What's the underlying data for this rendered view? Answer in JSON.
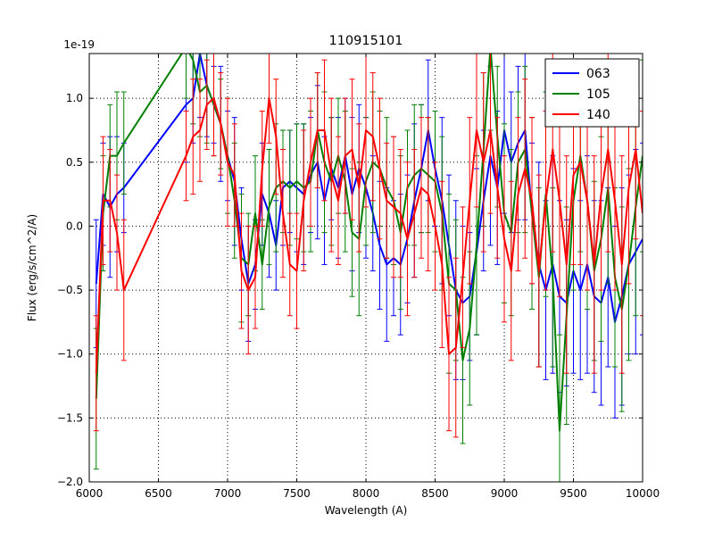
{
  "figure": {
    "title": "110915101",
    "xlabel": "Wavelength (A)",
    "ylabel": "Flux (erg/s/cm^2/A)",
    "offset_text": "1e-19"
  },
  "chart_data": {
    "type": "line",
    "title": "110915101",
    "xlabel": "Wavelength (A)",
    "ylabel": "Flux (erg/s/cm^2/A)",
    "y_scale_factor": "1e-19",
    "xlim": [
      6000,
      10000
    ],
    "ylim": [
      -2.0,
      1.35
    ],
    "xticks": [
      6000,
      6500,
      7000,
      7500,
      8000,
      8500,
      9000,
      9500,
      10000
    ],
    "yticks": [
      -2.0,
      -1.5,
      -1.0,
      -0.5,
      0.0,
      0.5,
      1.0
    ],
    "grid": true,
    "grid_style": "dotted",
    "legend": {
      "position": "upper right",
      "entries": [
        "063",
        "105",
        "140"
      ]
    },
    "series": [
      {
        "name": "063",
        "color": "#0000ff",
        "x": [
          6050,
          6100,
          6150,
          6200,
          6250,
          6700,
          6750,
          6800,
          6850,
          6900,
          6950,
          7000,
          7050,
          7100,
          7150,
          7200,
          7250,
          7300,
          7350,
          7400,
          7450,
          7500,
          7550,
          7600,
          7650,
          7700,
          7750,
          7800,
          7850,
          7900,
          7950,
          8000,
          8050,
          8100,
          8150,
          8200,
          8250,
          8300,
          8350,
          8400,
          8450,
          8500,
          8550,
          8600,
          8650,
          8700,
          8750,
          8800,
          8850,
          8900,
          8950,
          9000,
          9050,
          9100,
          9150,
          9200,
          9250,
          9300,
          9350,
          9400,
          9450,
          9500,
          9550,
          9600,
          9650,
          9700,
          9750,
          9800,
          9850,
          9900,
          9950,
          10000
        ],
        "y": [
          -0.45,
          0.25,
          0.15,
          0.25,
          0.3,
          0.95,
          1.0,
          1.35,
          1.1,
          0.95,
          0.8,
          0.55,
          0.35,
          -0.1,
          -0.45,
          -0.3,
          0.25,
          0.1,
          -0.15,
          0.3,
          0.35,
          0.3,
          0.25,
          0.4,
          0.5,
          0.2,
          0.45,
          0.3,
          0.55,
          0.25,
          0.45,
          0.3,
          0.1,
          -0.15,
          -0.3,
          -0.25,
          -0.3,
          -0.1,
          0.2,
          0.45,
          0.75,
          0.45,
          0.2,
          -0.15,
          -0.5,
          -0.6,
          -0.55,
          -0.2,
          0.2,
          0.55,
          0.3,
          0.75,
          0.5,
          0.65,
          0.75,
          0.1,
          -0.3,
          -0.5,
          -0.3,
          -0.55,
          -0.6,
          -0.35,
          -0.5,
          -0.3,
          -0.55,
          -0.6,
          -0.4,
          -0.75,
          -0.55,
          -0.3,
          -0.2,
          -0.1
        ],
        "yerr": [
          0.5,
          0.4,
          0.55,
          0.45,
          0.35,
          0.45,
          0.35,
          0.5,
          0.4,
          0.3,
          0.45,
          0.35,
          0.5,
          0.4,
          0.45,
          0.35,
          0.4,
          0.5,
          0.35,
          0.45,
          0.4,
          0.5,
          0.55,
          0.45,
          0.6,
          0.5,
          0.4,
          0.55,
          0.45,
          0.6,
          0.5,
          0.55,
          0.45,
          0.5,
          0.6,
          0.45,
          0.55,
          0.5,
          0.6,
          0.5,
          0.55,
          0.45,
          0.65,
          0.55,
          0.7,
          0.6,
          0.5,
          0.65,
          0.55,
          0.7,
          0.6,
          0.65,
          0.55,
          0.6,
          0.7,
          0.55,
          0.8,
          0.7,
          0.85,
          0.75,
          0.65,
          0.8,
          0.7,
          0.85,
          0.75,
          0.8,
          0.7,
          0.75,
          0.85,
          0.7,
          0.8,
          0.75
        ]
      },
      {
        "name": "105",
        "color": "#008000",
        "x": [
          6050,
          6100,
          6150,
          6200,
          6250,
          6700,
          6750,
          6800,
          6850,
          6900,
          6950,
          7000,
          7050,
          7100,
          7150,
          7200,
          7250,
          7300,
          7350,
          7400,
          7450,
          7500,
          7550,
          7600,
          7650,
          7700,
          7750,
          7800,
          7850,
          7900,
          7950,
          8000,
          8050,
          8100,
          8150,
          8200,
          8250,
          8300,
          8350,
          8400,
          8450,
          8500,
          8550,
          8600,
          8650,
          8700,
          8750,
          8800,
          8850,
          8900,
          8950,
          9000,
          9050,
          9100,
          9150,
          9200,
          9250,
          9300,
          9350,
          9400,
          9450,
          9500,
          9550,
          9600,
          9650,
          9700,
          9750,
          9800,
          9850,
          9900,
          9950,
          10000
        ],
        "y": [
          -1.35,
          0.1,
          0.55,
          0.55,
          0.65,
          1.4,
          1.3,
          1.05,
          1.1,
          0.95,
          0.8,
          0.55,
          0.2,
          -0.25,
          -0.3,
          0.1,
          -0.3,
          0.15,
          0.3,
          0.35,
          0.3,
          0.35,
          0.3,
          0.35,
          0.75,
          0.5,
          0.35,
          0.55,
          0.35,
          -0.05,
          -0.1,
          0.35,
          0.5,
          0.45,
          0.3,
          0.2,
          -0.05,
          0.3,
          0.4,
          0.45,
          0.4,
          0.35,
          0.1,
          -0.45,
          -0.5,
          -1.05,
          -0.8,
          -0.15,
          0.6,
          1.4,
          0.7,
          0.1,
          -0.05,
          0.5,
          0.6,
          0.1,
          -0.4,
          0.25,
          -0.4,
          -1.6,
          -0.7,
          0.2,
          0.55,
          0.2,
          -0.35,
          -0.1,
          0.3,
          -0.4,
          -0.65,
          -0.3,
          0.15,
          0.55
        ],
        "yerr": [
          0.55,
          0.45,
          0.4,
          0.5,
          0.4,
          0.4,
          0.5,
          0.35,
          0.45,
          0.4,
          0.35,
          0.45,
          0.45,
          0.5,
          0.4,
          0.45,
          0.35,
          0.45,
          0.5,
          0.4,
          0.45,
          0.45,
          0.5,
          0.55,
          0.45,
          0.55,
          0.5,
          0.45,
          0.55,
          0.5,
          0.6,
          0.5,
          0.55,
          0.45,
          0.55,
          0.5,
          0.6,
          0.45,
          0.55,
          0.5,
          0.45,
          0.55,
          0.6,
          0.7,
          0.55,
          0.65,
          0.6,
          0.7,
          0.6,
          0.65,
          0.55,
          0.7,
          0.65,
          0.55,
          0.65,
          0.75,
          0.7,
          0.8,
          0.7,
          0.75,
          0.85,
          0.7,
          0.75,
          0.85,
          0.7,
          0.8,
          0.75,
          0.7,
          0.8,
          0.75,
          0.85,
          0.75
        ]
      },
      {
        "name": "140",
        "color": "#ff0000",
        "x": [
          6050,
          6100,
          6150,
          6200,
          6250,
          6700,
          6750,
          6800,
          6850,
          6900,
          6950,
          7000,
          7050,
          7100,
          7150,
          7200,
          7250,
          7300,
          7350,
          7400,
          7450,
          7500,
          7550,
          7600,
          7650,
          7700,
          7750,
          7800,
          7850,
          7900,
          7950,
          8000,
          8050,
          8100,
          8150,
          8200,
          8250,
          8300,
          8350,
          8400,
          8450,
          8500,
          8550,
          8600,
          8650,
          8700,
          8750,
          8800,
          8850,
          8900,
          8950,
          9000,
          9050,
          9100,
          9150,
          9200,
          9250,
          9300,
          9350,
          9400,
          9450,
          9500,
          9550,
          9600,
          9650,
          9700,
          9750,
          9800,
          9850,
          9900,
          9950,
          10000
        ],
        "y": [
          -1.15,
          0.2,
          0.2,
          -0.05,
          -0.5,
          0.55,
          0.7,
          0.75,
          0.95,
          1.0,
          0.8,
          0.5,
          0.4,
          -0.35,
          -0.5,
          -0.4,
          0.45,
          1.0,
          0.7,
          0.1,
          -0.3,
          -0.35,
          0.2,
          0.5,
          0.75,
          0.75,
          0.4,
          0.2,
          0.55,
          0.6,
          0.3,
          0.75,
          0.7,
          0.45,
          0.2,
          0.15,
          0.1,
          -0.1,
          0.1,
          0.3,
          0.25,
          0.0,
          -0.3,
          -1.0,
          -0.95,
          -0.4,
          0.2,
          0.75,
          0.5,
          0.75,
          0.3,
          -0.1,
          -0.35,
          0.25,
          0.45,
          0.2,
          -0.35,
          0.2,
          0.6,
          0.2,
          -0.3,
          0.4,
          0.5,
          0.2,
          -0.3,
          0.25,
          0.6,
          0.2,
          -0.3,
          0.3,
          0.6,
          0.1
        ],
        "yerr": [
          0.45,
          0.5,
          0.4,
          0.45,
          0.55,
          0.35,
          0.45,
          0.4,
          0.35,
          0.45,
          0.4,
          0.5,
          0.4,
          0.45,
          0.5,
          0.4,
          0.45,
          0.35,
          0.45,
          0.5,
          0.4,
          0.45,
          0.55,
          0.5,
          0.45,
          0.55,
          0.6,
          0.5,
          0.45,
          0.55,
          0.5,
          0.6,
          0.5,
          0.55,
          0.45,
          0.55,
          0.5,
          0.6,
          0.5,
          0.55,
          0.6,
          0.5,
          0.65,
          0.6,
          0.7,
          0.55,
          0.65,
          0.6,
          0.7,
          0.65,
          0.55,
          0.65,
          0.7,
          0.6,
          0.7,
          0.65,
          0.75,
          0.7,
          0.8,
          0.75,
          0.85,
          0.7,
          0.8,
          0.7,
          0.85,
          0.75,
          0.8,
          0.7,
          0.85,
          0.75,
          0.7,
          0.8
        ]
      }
    ]
  }
}
